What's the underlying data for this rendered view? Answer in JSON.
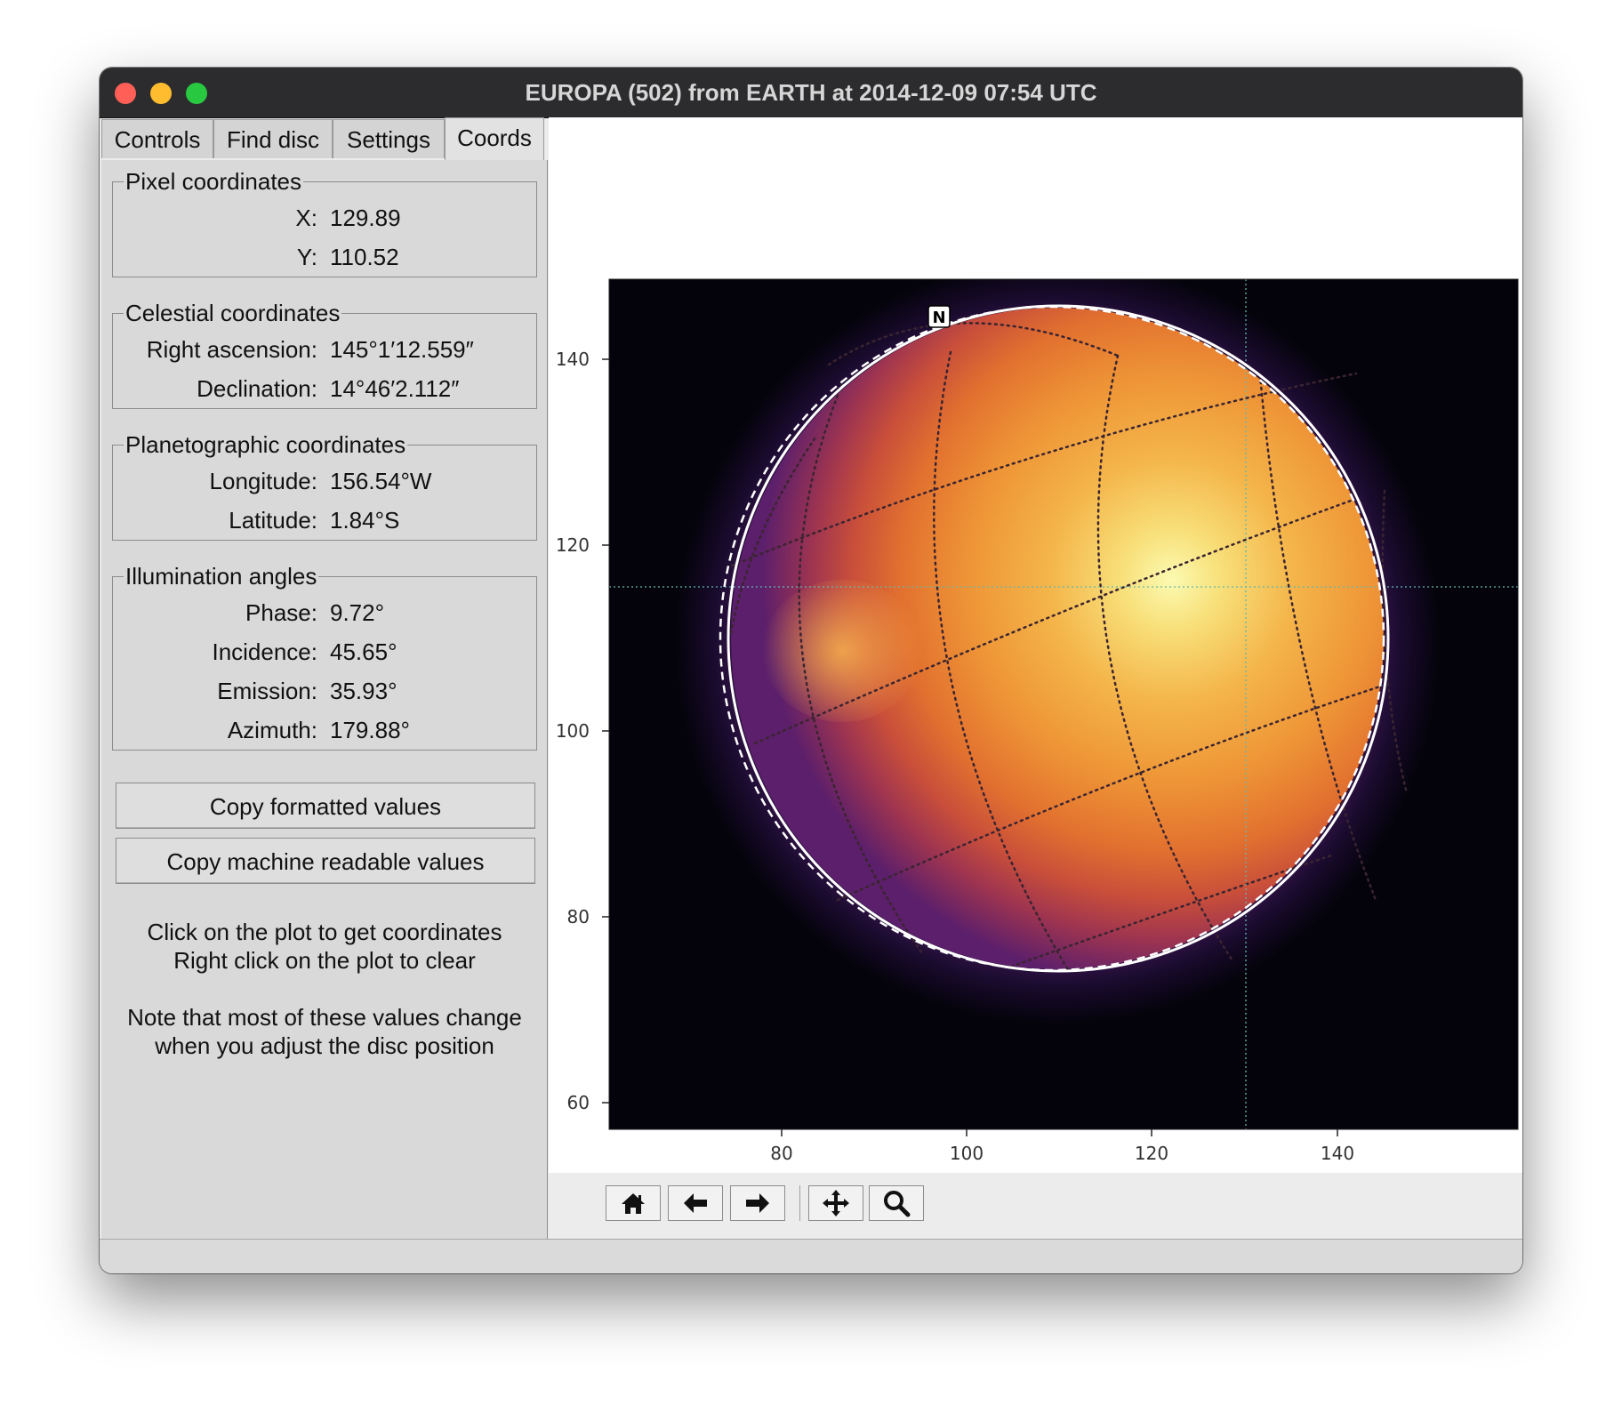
{
  "window": {
    "title": "EUROPA (502) from EARTH at 2014-12-09 07:54 UTC"
  },
  "tabs": [
    {
      "label": "Controls",
      "active": false
    },
    {
      "label": "Find disc",
      "active": false
    },
    {
      "label": "Settings",
      "active": false
    },
    {
      "label": "Coords",
      "active": true
    }
  ],
  "groups": {
    "pixel": {
      "title": "Pixel coordinates",
      "rows": [
        {
          "label": "X:",
          "value": "129.89"
        },
        {
          "label": "Y:",
          "value": "110.52"
        }
      ]
    },
    "celestial": {
      "title": "Celestial coordinates",
      "rows": [
        {
          "label": "Right ascension:",
          "value": "145°1′12.559″"
        },
        {
          "label": "Declination:",
          "value": "14°46′2.112″"
        }
      ]
    },
    "planetographic": {
      "title": "Planetographic coordinates",
      "rows": [
        {
          "label": "Longitude:",
          "value": "156.54°W"
        },
        {
          "label": "Latitude:",
          "value": "1.84°S"
        }
      ]
    },
    "illumination": {
      "title": "Illumination angles",
      "rows": [
        {
          "label": "Phase:",
          "value": "9.72°"
        },
        {
          "label": "Incidence:",
          "value": "45.65°"
        },
        {
          "label": "Emission:",
          "value": "35.93°"
        },
        {
          "label": "Azimuth:",
          "value": "179.88°"
        }
      ]
    }
  },
  "buttons": {
    "copy_formatted": "Copy formatted values",
    "copy_machine": "Copy machine readable values"
  },
  "notes": {
    "line1": "Click on the plot to get coordinates",
    "line2": "Right click on the plot to clear",
    "line3": "Note that most of these values change",
    "line4": "when you adjust the disc position"
  },
  "plot": {
    "north_marker": "N",
    "x_ticks": [
      "80",
      "100",
      "120",
      "140"
    ],
    "y_ticks": [
      "140",
      "120",
      "100",
      "80",
      "60"
    ],
    "crosshair": {
      "x": 129.89,
      "y": 110.52
    },
    "colormap": "inferno"
  },
  "toolbar": {
    "items": [
      {
        "name": "home-icon"
      },
      {
        "name": "back-arrow-icon"
      },
      {
        "name": "forward-arrow-icon"
      },
      {
        "name": "pan-icon"
      },
      {
        "name": "zoom-icon"
      }
    ]
  }
}
